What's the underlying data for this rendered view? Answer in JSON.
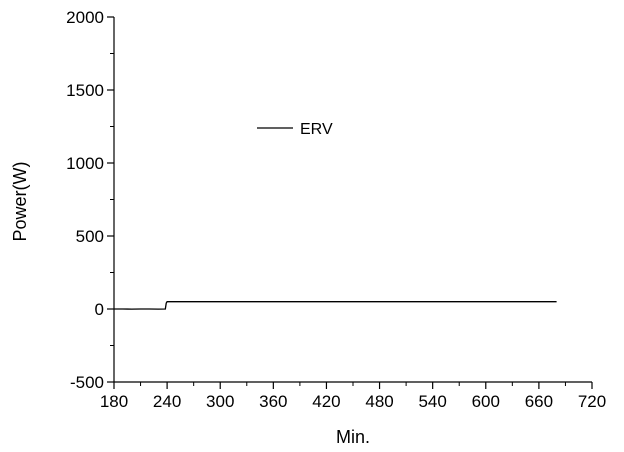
{
  "chart_data": {
    "type": "line",
    "xlabel": "Min.",
    "ylabel": "Power(W)",
    "xlim": [
      180,
      720
    ],
    "ylim": [
      -500,
      2000
    ],
    "x_ticks": [
      180,
      240,
      300,
      360,
      420,
      480,
      540,
      600,
      660,
      720
    ],
    "y_ticks": [
      -500,
      0,
      500,
      1000,
      1500,
      2000
    ],
    "grid": false,
    "legend_position": "upper-center",
    "series": [
      {
        "name": "ERV",
        "color": "#000000",
        "x": [
          180,
          190,
          200,
          210,
          220,
          230,
          238,
          239,
          240,
          300,
          360,
          420,
          480,
          540,
          600,
          660,
          680
        ],
        "y": [
          0,
          0,
          -1,
          0,
          0,
          -1,
          0,
          40,
          50,
          50,
          50,
          50,
          50,
          50,
          50,
          50,
          50
        ]
      }
    ]
  }
}
